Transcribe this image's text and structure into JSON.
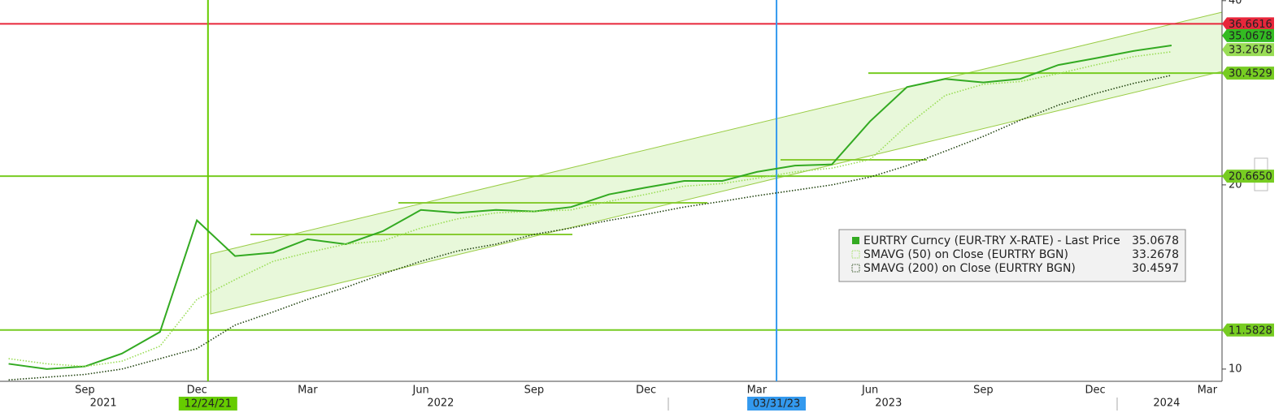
{
  "chart_data": {
    "type": "line",
    "log_scale": true,
    "xlim": [
      "2021-07-08",
      "2024-03-27"
    ],
    "ylim": [
      9.55,
      40.1
    ],
    "yticks": [
      10,
      20,
      40
    ],
    "xticks": [
      {
        "value": "2021-09-15",
        "label": "Sep"
      },
      {
        "value": "2021-12-15",
        "label": "Dec"
      },
      {
        "value": "2022-03-15",
        "label": "Mar"
      },
      {
        "value": "2022-06-15",
        "label": "Jun"
      },
      {
        "value": "2022-09-15",
        "label": "Sep"
      },
      {
        "value": "2022-12-15",
        "label": "Dec"
      },
      {
        "value": "2023-03-15",
        "label": "Mar"
      },
      {
        "value": "2023-06-15",
        "label": "Jun"
      },
      {
        "value": "2023-09-15",
        "label": "Sep"
      },
      {
        "value": "2023-12-15",
        "label": "Dec"
      },
      {
        "value": "2024-03-15",
        "label": "Mar"
      }
    ],
    "year_ticks": [
      {
        "value": "2021-09-30",
        "label": "2021"
      },
      {
        "value": "2022-07-01",
        "label": "2022"
      },
      {
        "value": "2023-06-30",
        "label": "2023"
      },
      {
        "value": "2024-02-11",
        "label": "2024"
      }
    ],
    "x": [
      "2021-07",
      "2021-08",
      "2021-09",
      "2021-10",
      "2021-11",
      "2021-12",
      "2022-01",
      "2022-02",
      "2022-03",
      "2022-04",
      "2022-05",
      "2022-06",
      "2022-07",
      "2022-08",
      "2022-09",
      "2022-10",
      "2022-11",
      "2022-12",
      "2023-01",
      "2023-02",
      "2023-03",
      "2023-04",
      "2023-05",
      "2023-06",
      "2023-07",
      "2023-08",
      "2023-09",
      "2023-10",
      "2023-11",
      "2023-12",
      "2024-01",
      "2024-02"
    ],
    "series": [
      {
        "name": "EURTRY Curncy (EUR-TRY X-RATE) - Last Price",
        "color": "#33aa22",
        "last": 35.0678,
        "values": [
          10.2,
          10.0,
          10.1,
          10.6,
          11.5,
          17.5,
          15.3,
          15.5,
          16.3,
          16.0,
          16.8,
          18.2,
          18.0,
          18.2,
          18.1,
          18.4,
          19.3,
          19.8,
          20.3,
          20.3,
          21.0,
          21.5,
          21.6,
          25.4,
          28.9,
          29.8,
          29.4,
          29.8,
          31.4,
          32.2,
          33.1,
          33.8
        ]
      },
      {
        "name": "SMAVG (50)  on Close (EURTRY BGN)",
        "color": "#99dd55",
        "last": 33.2678,
        "values": [
          10.4,
          10.2,
          10.1,
          10.3,
          10.9,
          13.0,
          14.0,
          15.0,
          15.5,
          16.0,
          16.2,
          17.0,
          17.6,
          18.0,
          18.1,
          18.2,
          18.8,
          19.3,
          19.9,
          20.1,
          20.5,
          21.0,
          21.3,
          22.0,
          25.0,
          28.0,
          29.2,
          29.5,
          30.4,
          31.4,
          32.4,
          33.0
        ]
      },
      {
        "name": "SMAVG (200)  on Close (EURTRY BGN)",
        "color": "#224411",
        "last": 30.4597,
        "values": [
          9.6,
          9.7,
          9.8,
          10.0,
          10.4,
          10.8,
          11.8,
          12.4,
          13.0,
          13.6,
          14.3,
          15.0,
          15.6,
          16.0,
          16.6,
          17.0,
          17.5,
          17.9,
          18.4,
          18.8,
          19.2,
          19.6,
          20.0,
          20.6,
          21.5,
          22.7,
          24.0,
          25.5,
          27.0,
          28.2,
          29.3,
          30.2
        ]
      }
    ],
    "hlines": [
      {
        "value": 36.6616,
        "label": "36.6616",
        "color": "#e8263b"
      },
      {
        "value": 20.665,
        "label": "20.6650",
        "color": "#77cc22"
      },
      {
        "value": 11.5828,
        "label": "11.5828",
        "color": "#77cc22"
      }
    ],
    "price_tags": [
      {
        "value": 30.4529,
        "label": "30.4529",
        "color": "#77cc22"
      }
    ],
    "vlines": [
      {
        "label": "12/24/21",
        "color": "#66cc00"
      },
      {
        "label": "03/31/23",
        "color": "#3399ee"
      }
    ]
  }
}
